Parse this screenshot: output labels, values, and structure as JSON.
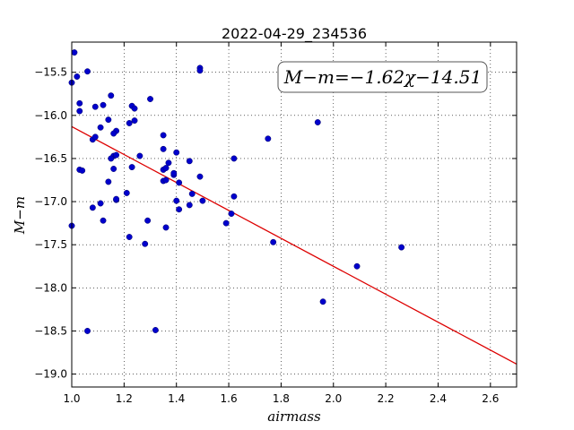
{
  "chart_data": {
    "type": "scatter",
    "title": "2022-04-29_234536",
    "xlabel": "airmass",
    "ylabel": "M−m",
    "xlim": [
      1.0,
      2.7
    ],
    "ylim": [
      -19.15,
      -15.15
    ],
    "x_ticks": [
      1.0,
      1.2,
      1.4,
      1.6,
      1.8,
      2.0,
      2.2,
      2.4,
      2.6
    ],
    "x_tick_labels": [
      "1.0",
      "1.2",
      "1.4",
      "1.6",
      "1.8",
      "2.0",
      "2.2",
      "2.4",
      "2.6"
    ],
    "y_ticks": [
      -15.5,
      -16.0,
      -16.5,
      -17.0,
      -17.5,
      -18.0,
      -18.5,
      -19.0
    ],
    "y_tick_labels": [
      "−15.5",
      "−16.0",
      "−16.5",
      "−17.0",
      "−17.5",
      "−18.0",
      "−18.5",
      "−19.0"
    ],
    "grid": true,
    "annotation": "M−m=−1.62χ−14.51",
    "fit": {
      "slope": -1.62,
      "intercept": -14.51
    },
    "colors": {
      "points": "#0000cc",
      "fit_line": "#dd0000"
    },
    "points": [
      [
        1.01,
        -15.27
      ],
      [
        1.0,
        -15.62
      ],
      [
        1.02,
        -15.55
      ],
      [
        1.06,
        -15.49
      ],
      [
        1.03,
        -15.86
      ],
      [
        1.03,
        -15.95
      ],
      [
        1.09,
        -15.9
      ],
      [
        1.12,
        -15.88
      ],
      [
        1.15,
        -15.77
      ],
      [
        1.23,
        -15.89
      ],
      [
        1.24,
        -15.92
      ],
      [
        1.3,
        -15.81
      ],
      [
        1.14,
        -16.05
      ],
      [
        1.11,
        -16.14
      ],
      [
        1.24,
        -16.06
      ],
      [
        1.22,
        -16.09
      ],
      [
        1.08,
        -16.28
      ],
      [
        1.09,
        -16.25
      ],
      [
        1.17,
        -16.18
      ],
      [
        1.16,
        -16.21
      ],
      [
        1.16,
        -16.47
      ],
      [
        1.17,
        -16.46
      ],
      [
        1.15,
        -16.5
      ],
      [
        1.26,
        -16.47
      ],
      [
        1.35,
        -16.23
      ],
      [
        1.35,
        -16.39
      ],
      [
        1.37,
        -16.55
      ],
      [
        1.4,
        -16.43
      ],
      [
        1.45,
        -16.53
      ],
      [
        1.03,
        -16.63
      ],
      [
        1.04,
        -16.64
      ],
      [
        1.16,
        -16.62
      ],
      [
        1.23,
        -16.6
      ],
      [
        1.35,
        -16.63
      ],
      [
        1.36,
        -16.61
      ],
      [
        1.39,
        -16.69
      ],
      [
        1.39,
        -16.67
      ],
      [
        1.14,
        -16.77
      ],
      [
        1.35,
        -16.76
      ],
      [
        1.36,
        -16.75
      ],
      [
        1.41,
        -16.78
      ],
      [
        1.49,
        -16.71
      ],
      [
        1.46,
        -16.91
      ],
      [
        1.21,
        -16.9
      ],
      [
        1.17,
        -16.98
      ],
      [
        1.17,
        -16.97
      ],
      [
        1.4,
        -16.99
      ],
      [
        1.45,
        -17.04
      ],
      [
        1.41,
        -17.09
      ],
      [
        1.5,
        -16.99
      ],
      [
        1.08,
        -17.07
      ],
      [
        1.11,
        -17.02
      ],
      [
        1.12,
        -17.22
      ],
      [
        1.29,
        -17.22
      ],
      [
        1.36,
        -17.3
      ],
      [
        1.22,
        -17.41
      ],
      [
        1.28,
        -17.49
      ],
      [
        1.0,
        -17.28
      ],
      [
        1.59,
        -17.25
      ],
      [
        1.61,
        -17.14
      ],
      [
        1.62,
        -16.5
      ],
      [
        1.62,
        -16.94
      ],
      [
        1.49,
        -15.45
      ],
      [
        1.49,
        -15.48
      ],
      [
        1.75,
        -16.27
      ],
      [
        1.77,
        -17.47
      ],
      [
        1.94,
        -16.08
      ],
      [
        2.09,
        -17.75
      ],
      [
        1.96,
        -18.16
      ],
      [
        2.26,
        -17.53
      ],
      [
        1.06,
        -18.5
      ],
      [
        1.32,
        -18.49
      ]
    ]
  }
}
